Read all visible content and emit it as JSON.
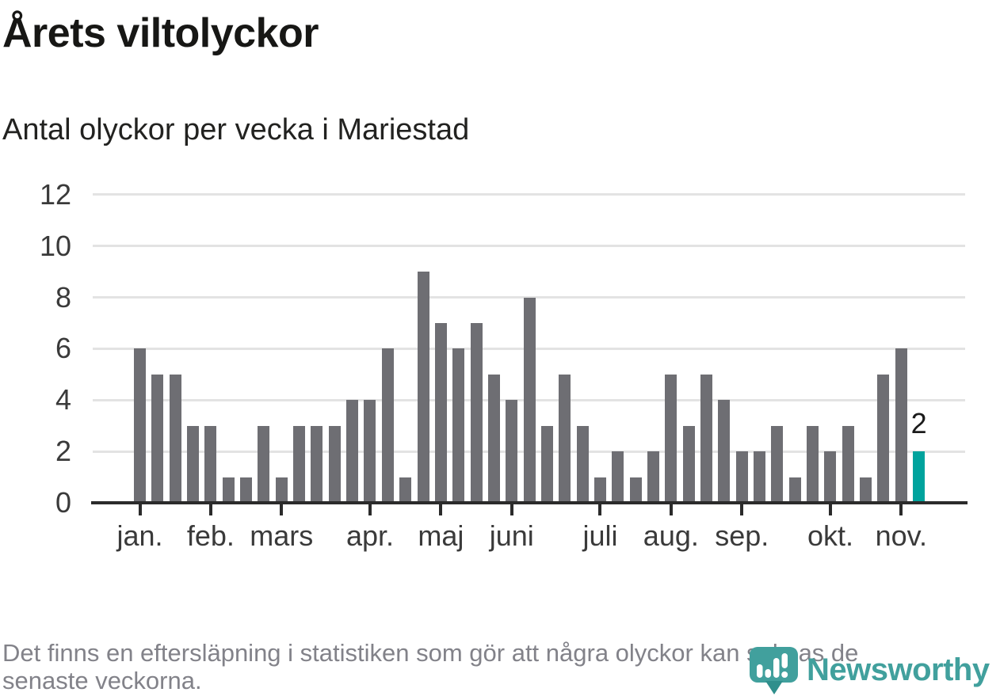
{
  "header": {
    "title": "Årets viltolyckor",
    "subtitle": "Antal olyckor per vecka i Mariestad"
  },
  "chart_data": {
    "type": "bar",
    "title": "Årets viltolyckor",
    "subtitle": "Antal olyckor per vecka i Mariestad",
    "x_unit": "vecka (week of year)",
    "first_week": 1,
    "values": [
      6,
      5,
      5,
      3,
      3,
      1,
      1,
      3,
      1,
      3,
      3,
      3,
      4,
      4,
      6,
      1,
      9,
      7,
      6,
      7,
      5,
      4,
      8,
      3,
      5,
      3,
      1,
      2,
      1,
      2,
      5,
      3,
      5,
      4,
      2,
      2,
      3,
      1,
      3,
      2,
      3,
      1,
      5,
      6,
      2
    ],
    "ylim": [
      0,
      12
    ],
    "yticks": [
      0,
      2,
      4,
      6,
      8,
      10,
      12
    ],
    "grid": "horizontal-light",
    "legend": "none",
    "month_ticks": [
      {
        "label": "jan.",
        "week": 1
      },
      {
        "label": "feb.",
        "week": 5
      },
      {
        "label": "mars",
        "week": 9
      },
      {
        "label": "apr.",
        "week": 14
      },
      {
        "label": "maj",
        "week": 18
      },
      {
        "label": "juni",
        "week": 22
      },
      {
        "label": "juli",
        "week": 27
      },
      {
        "label": "aug.",
        "week": 31
      },
      {
        "label": "sep.",
        "week": 35
      },
      {
        "label": "okt.",
        "week": 40
      },
      {
        "label": "nov.",
        "week": 44
      }
    ],
    "highlight": {
      "week": 45,
      "value": 2,
      "label": "2"
    }
  },
  "colors": {
    "bar": "#6e6e73",
    "highlight_bar": "#00a39d",
    "gridline": "#e3e3e3",
    "axis": "#2b2b2b",
    "axis_text": "#3a3a3a",
    "title_text": "#171715",
    "footer_text": "#828289",
    "logo": "#41a09d",
    "background": "#ffffff"
  },
  "footer": {
    "lines": [
      "Det finns en eftersläpning i statistiken som gör att några olyckor kan saknas de",
      "senaste veckorna."
    ]
  },
  "logo": {
    "text": "Newsworthy",
    "icon": "newsworthy-bubble-bar-chart-icon"
  }
}
